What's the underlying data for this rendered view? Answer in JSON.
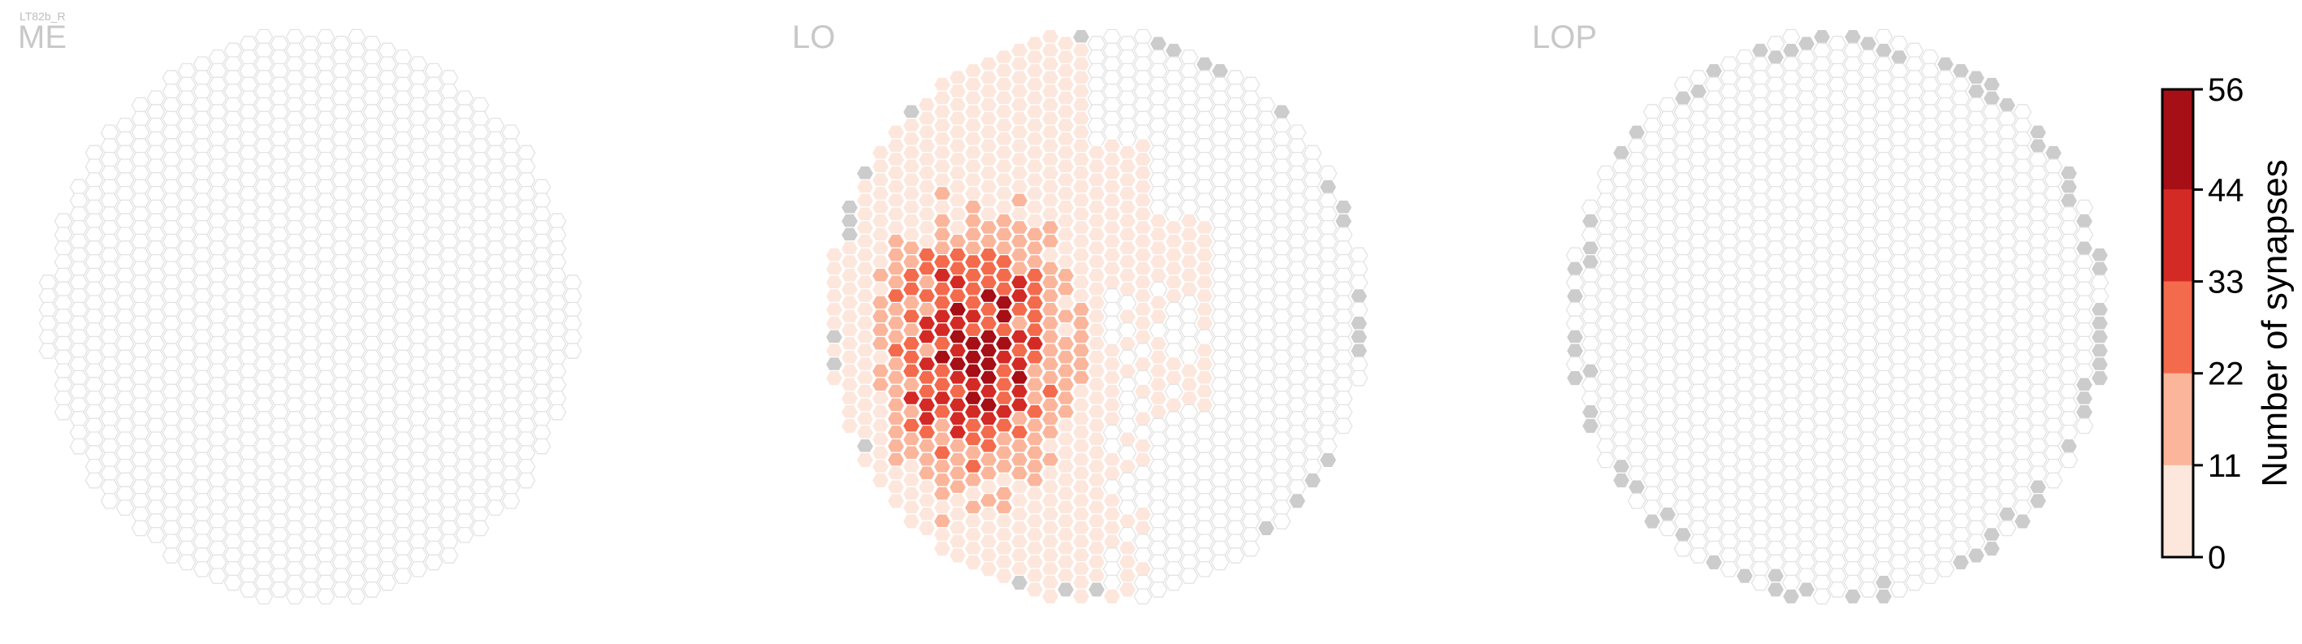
{
  "figure": {
    "cell_type": "LT82b_R"
  },
  "chart_data": {
    "type": "heatmap",
    "subtype": "hexagonal column map",
    "cell_type": "LT82b_R",
    "panels": [
      {
        "name": "ME",
        "synapses": "none (all columns empty)"
      },
      {
        "name": "LO",
        "synapses": "0-56 per column, highest in lower-left quadrant, none in right third"
      },
      {
        "name": "LOP",
        "synapses": "none (all columns empty)"
      }
    ],
    "colorbar": {
      "label": "Number of synapses",
      "ticks": [
        "0",
        "11",
        "22",
        "33",
        "44",
        "56"
      ],
      "range": [
        0,
        56
      ],
      "bins": [
        {
          "from": 0,
          "to": 11,
          "color": "#fde6dc"
        },
        {
          "from": 11,
          "to": 22,
          "color": "#fbb59b"
        },
        {
          "from": 22,
          "to": 33,
          "color": "#f46a4c"
        },
        {
          "from": 33,
          "to": 44,
          "color": "#d42a25"
        },
        {
          "from": 44,
          "to": 56,
          "color": "#a50f15"
        }
      ]
    },
    "empty_column_color": "#ffffff",
    "outside_column_color": "#cccccc",
    "grid": false
  }
}
